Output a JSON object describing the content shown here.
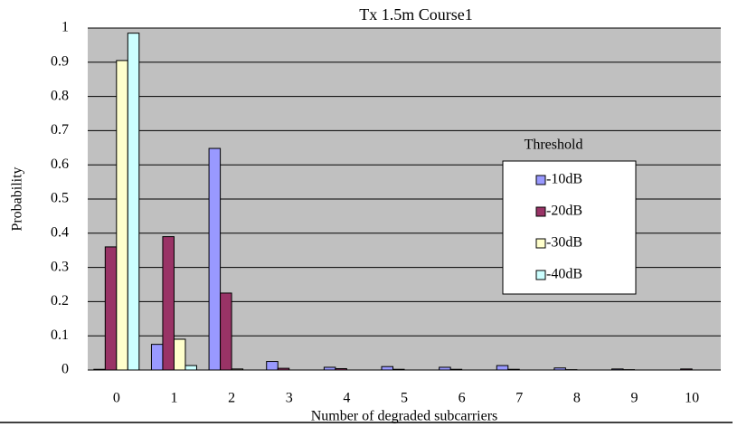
{
  "chart_data": {
    "type": "bar",
    "title": "Tx 1.5m Course1",
    "x_label": "Number of degraded subcarriers",
    "y_label": "Probability",
    "categories": [
      "0",
      "1",
      "2",
      "3",
      "4",
      "5",
      "6",
      "7",
      "8",
      "9",
      "10"
    ],
    "legend_title": "Threshold",
    "legend": "right",
    "series": [
      {
        "name": "-10dB",
        "color": "#9999ff",
        "values": [
          0.002,
          0.075,
          0.648,
          0.025,
          0.008,
          0.01,
          0.008,
          0.013,
          0.006,
          0.003,
          0
        ]
      },
      {
        "name": "-20dB",
        "color": "#993366",
        "values": [
          0.36,
          0.39,
          0.225,
          0.005,
          0.004,
          0.002,
          0.002,
          0.002,
          0.001,
          0.001,
          0.003
        ]
      },
      {
        "name": "-30dB",
        "color": "#ffffcc",
        "values": [
          0.905,
          0.09,
          0.003,
          0,
          0,
          0,
          0,
          0,
          0,
          0,
          0
        ]
      },
      {
        "name": "-40dB",
        "color": "#ccffff",
        "values": [
          0.985,
          0.013,
          0,
          0,
          0,
          0,
          0,
          0,
          0,
          0,
          0
        ]
      }
    ],
    "ylim": [
      0,
      1
    ],
    "yticks": [
      0,
      0.1,
      0.2,
      0.3,
      0.4,
      0.5,
      0.6,
      0.7,
      0.8,
      0.9,
      1
    ],
    "grid": true
  }
}
